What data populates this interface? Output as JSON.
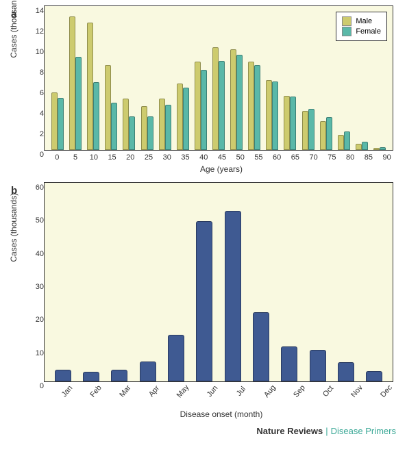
{
  "panel_a": {
    "label": "a",
    "type": "grouped-bar",
    "y_axis_label": "Cases (thousands)",
    "x_axis_label": "Age (years)",
    "ylim": [
      0,
      14
    ],
    "ytick_step": 2,
    "yticks": [
      0,
      2,
      4,
      6,
      8,
      10,
      12,
      14
    ],
    "categories": [
      "0",
      "5",
      "10",
      "15",
      "20",
      "25",
      "30",
      "35",
      "40",
      "45",
      "50",
      "55",
      "60",
      "65",
      "70",
      "75",
      "80",
      "85",
      "90"
    ],
    "series": [
      {
        "name": "Male",
        "color": "#cdcb6e",
        "values": [
          5.6,
          13.0,
          12.4,
          8.3,
          5.0,
          4.3,
          5.0,
          6.5,
          8.6,
          10.0,
          9.8,
          8.6,
          6.8,
          5.3,
          3.8,
          2.8,
          1.5,
          0.6,
          0.2
        ]
      },
      {
        "name": "Female",
        "color": "#5ab8a8",
        "values": [
          5.1,
          9.1,
          6.6,
          4.6,
          3.3,
          3.3,
          4.4,
          6.1,
          7.8,
          8.7,
          9.3,
          8.3,
          6.7,
          5.2,
          4.0,
          3.2,
          1.8,
          0.8,
          0.3
        ]
      }
    ],
    "legend_position": "top-right",
    "background_color": "#f9f9e0",
    "label_fontsize": 12,
    "tick_fontsize": 11
  },
  "panel_b": {
    "label": "b",
    "type": "bar",
    "y_axis_label": "Cases (thousands)",
    "x_axis_label": "Disease onset (month)",
    "ylim": [
      0,
      60
    ],
    "ytick_step": 10,
    "yticks": [
      0,
      10,
      20,
      30,
      40,
      50,
      60
    ],
    "categories": [
      "Jan",
      "Feb",
      "Mar",
      "Apr",
      "May",
      "Jun",
      "Jul",
      "Aug",
      "Sep",
      "Oct",
      "Nov",
      "Dec"
    ],
    "values": [
      3.5,
      3.0,
      3.5,
      6.0,
      14.0,
      48.5,
      51.5,
      20.8,
      10.5,
      9.5,
      5.8,
      3.2
    ],
    "bar_color": "#3f5a92",
    "background_color": "#f9f9e0",
    "label_fontsize": 12,
    "tick_fontsize": 11
  },
  "footer": {
    "brand": "Nature Reviews",
    "section": "Disease Primers"
  }
}
